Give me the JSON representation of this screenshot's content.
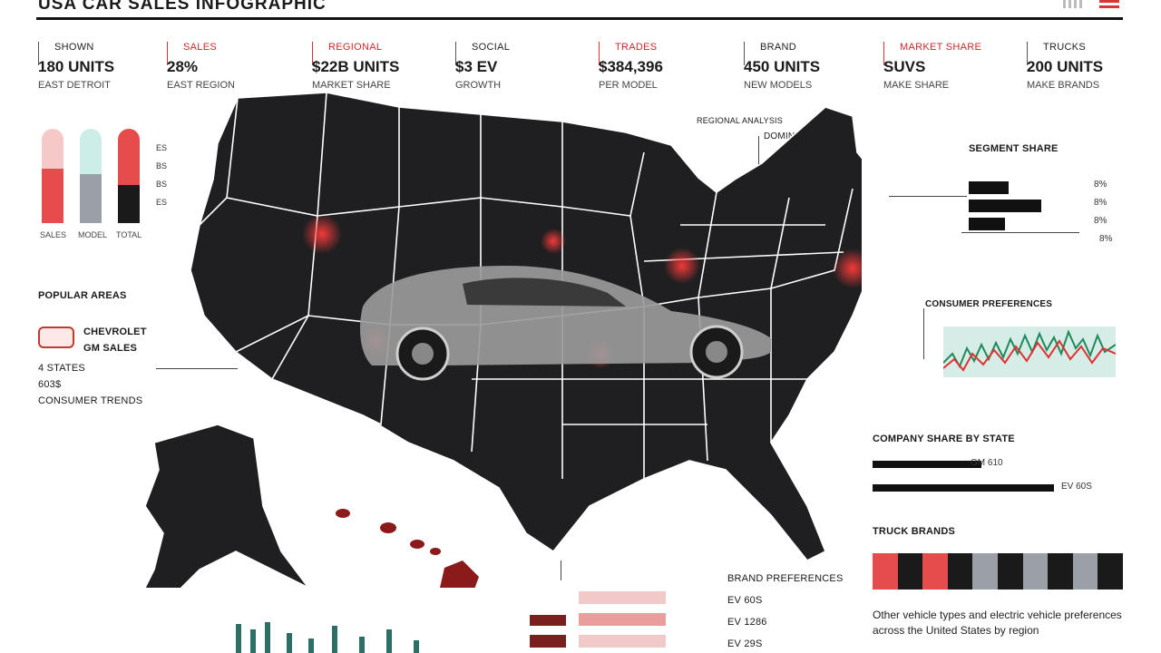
{
  "title": "USA CAR SALES INFOGRAPHIC",
  "stats": [
    {
      "label": "SHOWN",
      "value": "180 UNITS",
      "sub": "EAST DETROIT",
      "accent": false
    },
    {
      "label": "SALES",
      "value": "28%",
      "sub": "EAST REGION",
      "accent": true
    },
    {
      "label": "REGIONAL",
      "value": "$22B UNITS",
      "sub": "MARKET SHARE",
      "accent": true
    },
    {
      "label": "SOCIAL",
      "value": "$3 EV",
      "sub": "GROWTH",
      "accent": false
    },
    {
      "label": "TRADES",
      "value": "$384,396",
      "sub": "PER MODEL",
      "accent": true
    },
    {
      "label": "BRAND",
      "value": "450 UNITS",
      "sub": "NEW MODELS",
      "accent": false
    },
    {
      "label": "MARKET SHARE",
      "value": "SUVS",
      "sub": "MAKE SHARE",
      "accent": true
    },
    {
      "label": "TRUCKS",
      "value": "200 UNITS",
      "sub": "MAKE BRANDS",
      "accent": false
    }
  ],
  "mini_chart": {
    "ticks": [
      "ES",
      "BS",
      "BS",
      "ES"
    ],
    "categories": [
      "SALES",
      "MODEL",
      "TOTAL"
    ],
    "values": [
      0.58,
      0.52,
      0.4
    ],
    "colors": [
      "#e74c4c",
      "#9aa0a6",
      "#1a1a1a"
    ],
    "caps": [
      "#f6c9c9",
      "#cdeee8",
      "#e74c4c"
    ]
  },
  "left_panel": {
    "heading": "POPULAR AREAS",
    "line1": "CHEVROLET",
    "line2": "GM SALES",
    "line3": "4 STATES",
    "line4": "603$",
    "line5": "CONSUMER TRENDS"
  },
  "top_annotations": {
    "a1": "REGIONAL ANALYSIS",
    "a2": "DOMINANT BRANDS"
  },
  "right_top": {
    "heading": "SEGMENT SHARE",
    "values": [
      "8%",
      "8%",
      "8%",
      "8%"
    ],
    "bars": [
      0.55,
      1.0,
      0.5
    ]
  },
  "right_mid": {
    "heading": "CONSUMER PREFERENCES"
  },
  "right_lower": {
    "heading": "COMPANY SHARE BY STATE",
    "rows": [
      {
        "value": "GM 610",
        "frac": 0.6
      },
      {
        "value": "EV 60S",
        "frac": 1.0
      }
    ]
  },
  "swatches": {
    "heading": "TRUCK BRANDS",
    "colors": [
      "#e74c4c",
      "#1a1a1a",
      "#e74c4c",
      "#1a1a1a",
      "#9aa0a6",
      "#1a1a1a",
      "#9aa0a6",
      "#1a1a1a",
      "#9aa0a6",
      "#1a1a1a"
    ]
  },
  "bottom_center": {
    "heading": "BRAND PREFERENCES",
    "l1": "EV 60S",
    "l2": "EV 1286",
    "l3": "EV 29S"
  },
  "bottom_note": "Other vehicle types and electric vehicle preferences across the United States by region",
  "colors": {
    "map_fill": "#1f1f21",
    "accent": "#e03131",
    "car": "#9a9a9a"
  }
}
